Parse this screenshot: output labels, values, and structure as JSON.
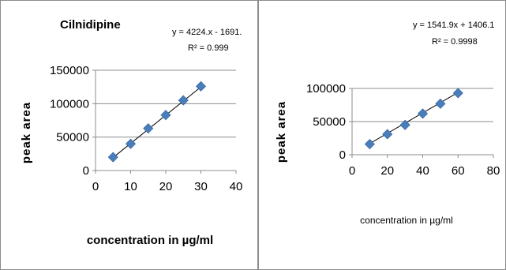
{
  "chart_data": [
    {
      "type": "scatter",
      "title": "Cilnidipine",
      "xlabel": "concentration in µg/ml",
      "ylabel": "peak area",
      "xlim": [
        0,
        40
      ],
      "ylim": [
        0,
        150000
      ],
      "x_ticks": [
        "0",
        "10",
        "20",
        "30",
        "40"
      ],
      "y_ticks": [
        "0",
        "50000",
        "100000",
        "150000"
      ],
      "series": [
        {
          "x": [
            5,
            10,
            15,
            20,
            25,
            30
          ],
          "y": [
            20000,
            40000,
            63000,
            83000,
            105000,
            126000
          ]
        }
      ],
      "trendline": {
        "slope": 4224,
        "intercept": -1691
      },
      "equation": "y = 4224.x - 1691.",
      "r_squared": "R² = 0.999",
      "marker_color": "#4a7ebb",
      "line_color": "#000000",
      "grid": "horizontal",
      "legend": "none"
    },
    {
      "type": "scatter",
      "title": "",
      "xlabel": "concentration in µg/ml",
      "ylabel": "peak area",
      "xlim": [
        0,
        80
      ],
      "ylim": [
        0,
        100000
      ],
      "x_ticks": [
        "0",
        "20",
        "40",
        "60",
        "80"
      ],
      "y_ticks": [
        "0",
        "50000",
        "100000"
      ],
      "series": [
        {
          "x": [
            10,
            20,
            30,
            40,
            50,
            60
          ],
          "y": [
            16000,
            31000,
            45000,
            62000,
            77000,
            93000
          ]
        }
      ],
      "trendline": {
        "slope": 1541.9,
        "intercept": 1406.1
      },
      "equation": "y = 1541.9x + 1406.1",
      "r_squared": "R² = 0.9998",
      "marker_color": "#4a7ebb",
      "line_color": "#000000",
      "grid": "horizontal",
      "legend": "none"
    }
  ]
}
